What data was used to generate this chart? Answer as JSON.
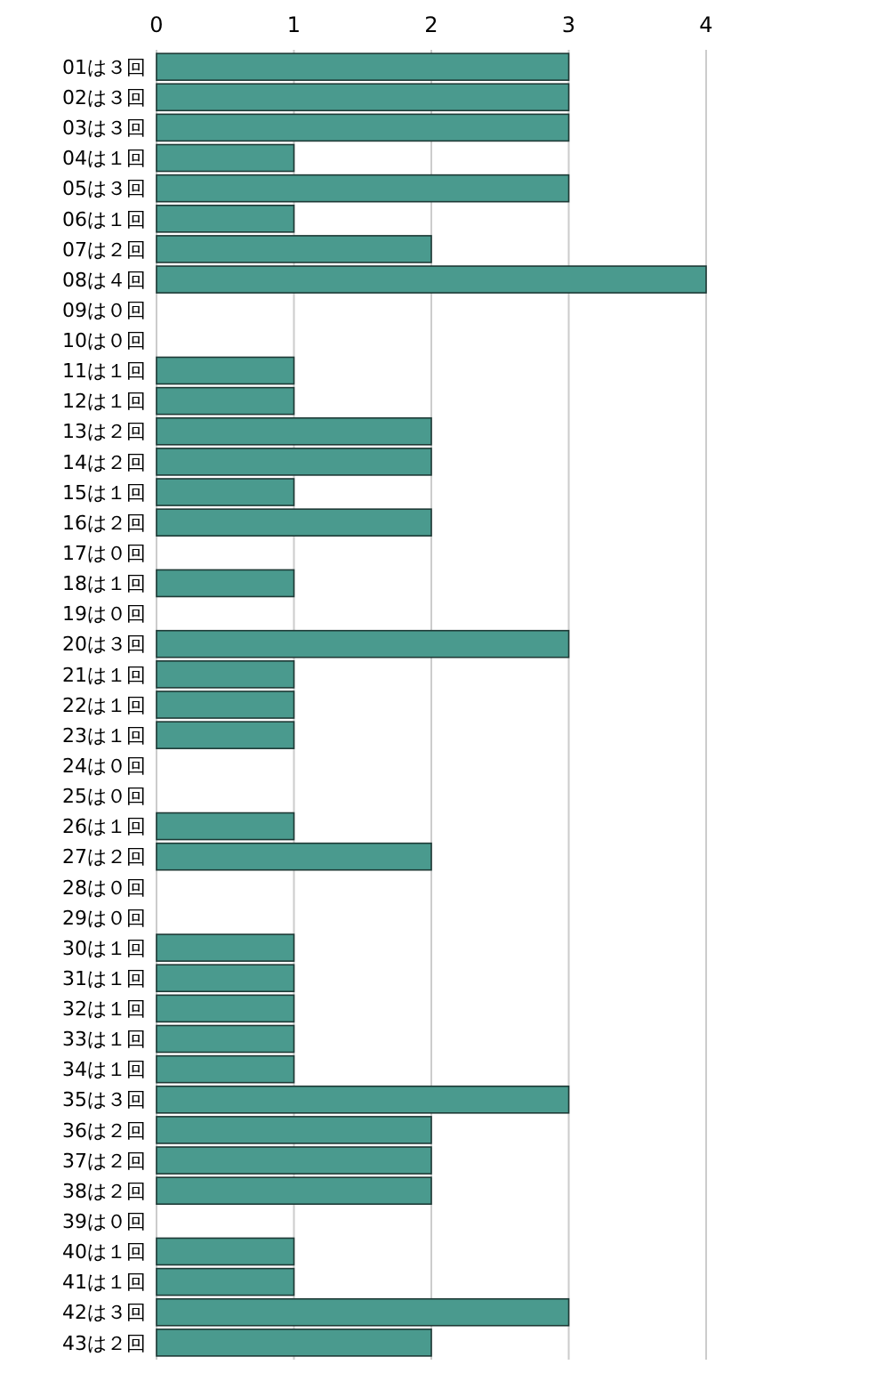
{
  "chart_data": {
    "type": "bar",
    "orientation": "horizontal",
    "categories": [
      "01は３回",
      "02は３回",
      "03は３回",
      "04は１回",
      "05は３回",
      "06は１回",
      "07は２回",
      "08は４回",
      "09は０回",
      "10は０回",
      "11は１回",
      "12は１回",
      "13は２回",
      "14は２回",
      "15は１回",
      "16は２回",
      "17は０回",
      "18は１回",
      "19は０回",
      "20は３回",
      "21は１回",
      "22は１回",
      "23は１回",
      "24は０回",
      "25は０回",
      "26は１回",
      "27は２回",
      "28は０回",
      "29は０回",
      "30は１回",
      "31は１回",
      "32は１回",
      "33は１回",
      "34は１回",
      "35は３回",
      "36は２回",
      "37は２回",
      "38は２回",
      "39は０回",
      "40は１回",
      "41は１回",
      "42は３回",
      "43は２回"
    ],
    "values": [
      3,
      3,
      3,
      1,
      3,
      1,
      2,
      4,
      0,
      0,
      1,
      1,
      2,
      2,
      1,
      2,
      0,
      1,
      0,
      3,
      1,
      1,
      1,
      0,
      0,
      1,
      2,
      0,
      0,
      1,
      1,
      1,
      1,
      1,
      3,
      2,
      2,
      2,
      0,
      1,
      1,
      3,
      2
    ],
    "color": "#4a9a8e",
    "xlim": [
      0,
      4
    ],
    "xticks": [
      0,
      1,
      2,
      3,
      4
    ],
    "grid": "x"
  }
}
